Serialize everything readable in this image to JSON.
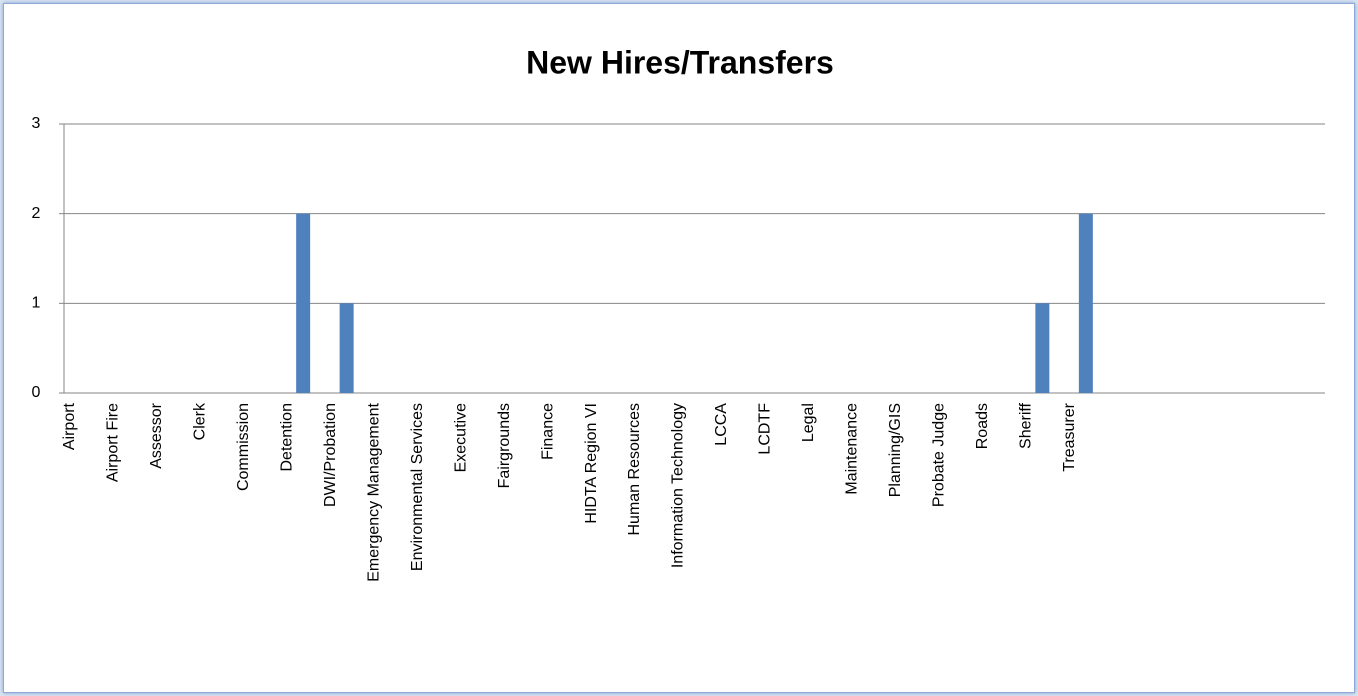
{
  "chart_data": {
    "type": "bar",
    "title": "New Hires/Transfers",
    "categories": [
      "Airport",
      "Airport Fire",
      "Assessor",
      "Clerk",
      "Commission",
      "Detention",
      "DWI/Probation",
      "Emergency Management",
      "Environmental Services",
      "Executive",
      "Fairgrounds",
      "Finance",
      "HIDTA Region VI",
      "Human Resources",
      "Information Technology",
      "LCCA",
      "LCDTF",
      "Legal",
      "Maintenance",
      "Planning/GIS",
      "Probate Judge",
      "Roads",
      "Sheriff",
      "Treasurer",
      null,
      null,
      null,
      null,
      null
    ],
    "values": [
      0,
      0,
      0,
      0,
      0,
      2,
      1,
      0,
      0,
      0,
      0,
      0,
      0,
      0,
      0,
      0,
      0,
      0,
      0,
      0,
      0,
      0,
      1,
      2,
      null,
      null,
      null,
      null,
      null
    ],
    "color": "#4f81bd",
    "ylim": [
      0,
      3
    ],
    "yticks": [
      0,
      1,
      2,
      3
    ],
    "grid": true
  }
}
